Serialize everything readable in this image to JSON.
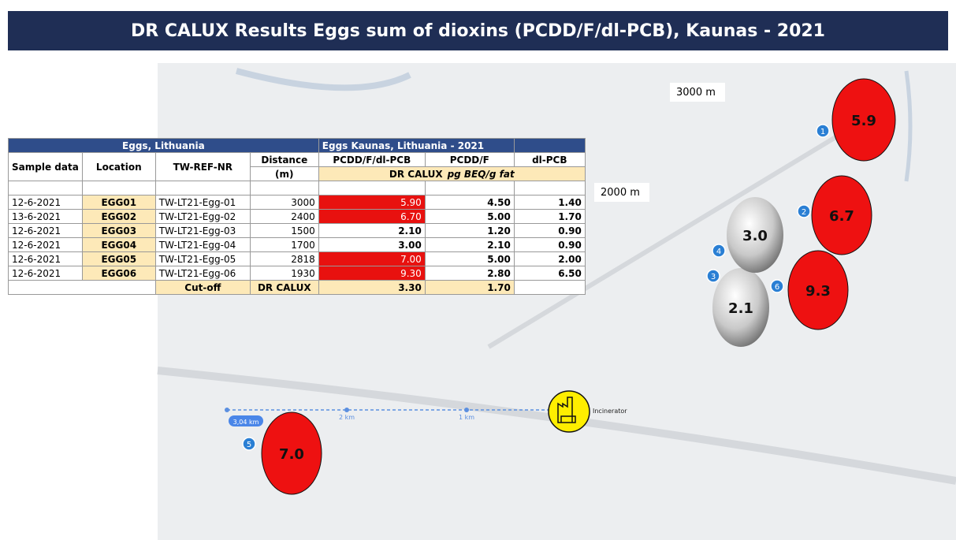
{
  "header": {
    "title": "DR CALUX  Results Eggs sum of dioxins (PCDD/F/dl-PCB), Kaunas -  2021"
  },
  "table": {
    "group_headers": [
      "Eggs, Lithuania",
      "Eggs Kaunas, Lithuania - 2021"
    ],
    "columns": [
      "Sample data",
      "Location",
      "TW-REF-NR",
      "Distance",
      "PCDD/F/dl-PCB",
      "PCDD/F",
      "dl-PCB"
    ],
    "distance_unit": "(m)",
    "method_unit": {
      "method": "DR CALUX",
      "unit": "pg BEQ/g fat"
    },
    "rows": [
      [
        "12-6-2021",
        "EGG01",
        "TW-LT21-Egg-01",
        "3000",
        "5.90",
        "4.50",
        "1.40"
      ],
      [
        "13-6-2021",
        "EGG02",
        "TW-LT21-Egg-02",
        "2400",
        "6.70",
        "5.00",
        "1.70"
      ],
      [
        "12-6-2021",
        "EGG03",
        "TW-LT21-Egg-03",
        "1500",
        "2.10",
        "1.20",
        "0.90"
      ],
      [
        "12-6-2021",
        "EGG04",
        "TW-LT21-Egg-04",
        "1700",
        "3.00",
        "2.10",
        "0.90"
      ],
      [
        "12-6-2021",
        "EGG05",
        "TW-LT21-Egg-05",
        "2818",
        "7.00",
        "5.00",
        "2.00"
      ],
      [
        "12-6-2021",
        "EGG06",
        "TW-LT21-Egg-06",
        "1930",
        "9.30",
        "2.80",
        "6.50"
      ]
    ],
    "cutoff": {
      "label": "Cut-off",
      "method": "DR CALUX",
      "values": [
        "3.30",
        "1.70"
      ]
    }
  },
  "map": {
    "distance_labels": [
      "3000 m",
      "2000 m"
    ],
    "eggs": [
      {
        "marker": "1",
        "label": "5.9"
      },
      {
        "marker": "2",
        "label": "6.7"
      },
      {
        "marker": "3",
        "label": "2.1"
      },
      {
        "marker": "4",
        "label": "3.0"
      },
      {
        "marker": "5",
        "label": "7.0"
      },
      {
        "marker": "6",
        "label": "9.3"
      }
    ],
    "scale": {
      "total": "3,04 km",
      "ticks": [
        "2 km",
        "1 km"
      ]
    },
    "source": "Incinerator"
  }
}
